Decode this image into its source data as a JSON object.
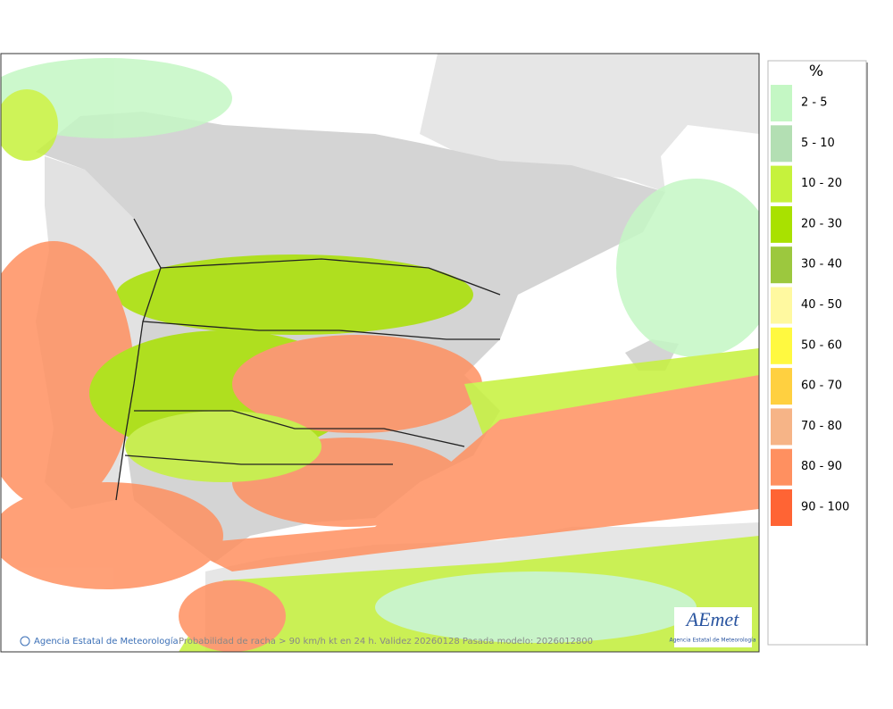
{
  "legend": {
    "title": "%",
    "items": [
      {
        "label": "2 - 5",
        "color": "#c4f7c4"
      },
      {
        "label": "5 - 10",
        "color": "#b3dfb3"
      },
      {
        "label": "10 - 20",
        "color": "#c6f23c"
      },
      {
        "label": "20 - 30",
        "color": "#a9e100"
      },
      {
        "label": "30 - 40",
        "color": "#9cc83e"
      },
      {
        "label": "40 - 50",
        "color": "#fff9a0"
      },
      {
        "label": "50 - 60",
        "color": "#fff940"
      },
      {
        "label": "60 - 70",
        "color": "#ffd040"
      },
      {
        "label": "70 - 80",
        "color": "#f6b487"
      },
      {
        "label": "80 - 90",
        "color": "#ff9060"
      },
      {
        "label": "90 - 100",
        "color": "#ff6434"
      }
    ]
  },
  "footer": {
    "credit": "Agencia Estatal de Meteorología",
    "caption": "Probabilidad de racha > 90 km/h kt en 24 h. Validez  20260128 Pasada modelo: 2026012800"
  },
  "logo": {
    "name": "AEmet",
    "subtitle": "Agencia Estatal de Meteorología"
  }
}
